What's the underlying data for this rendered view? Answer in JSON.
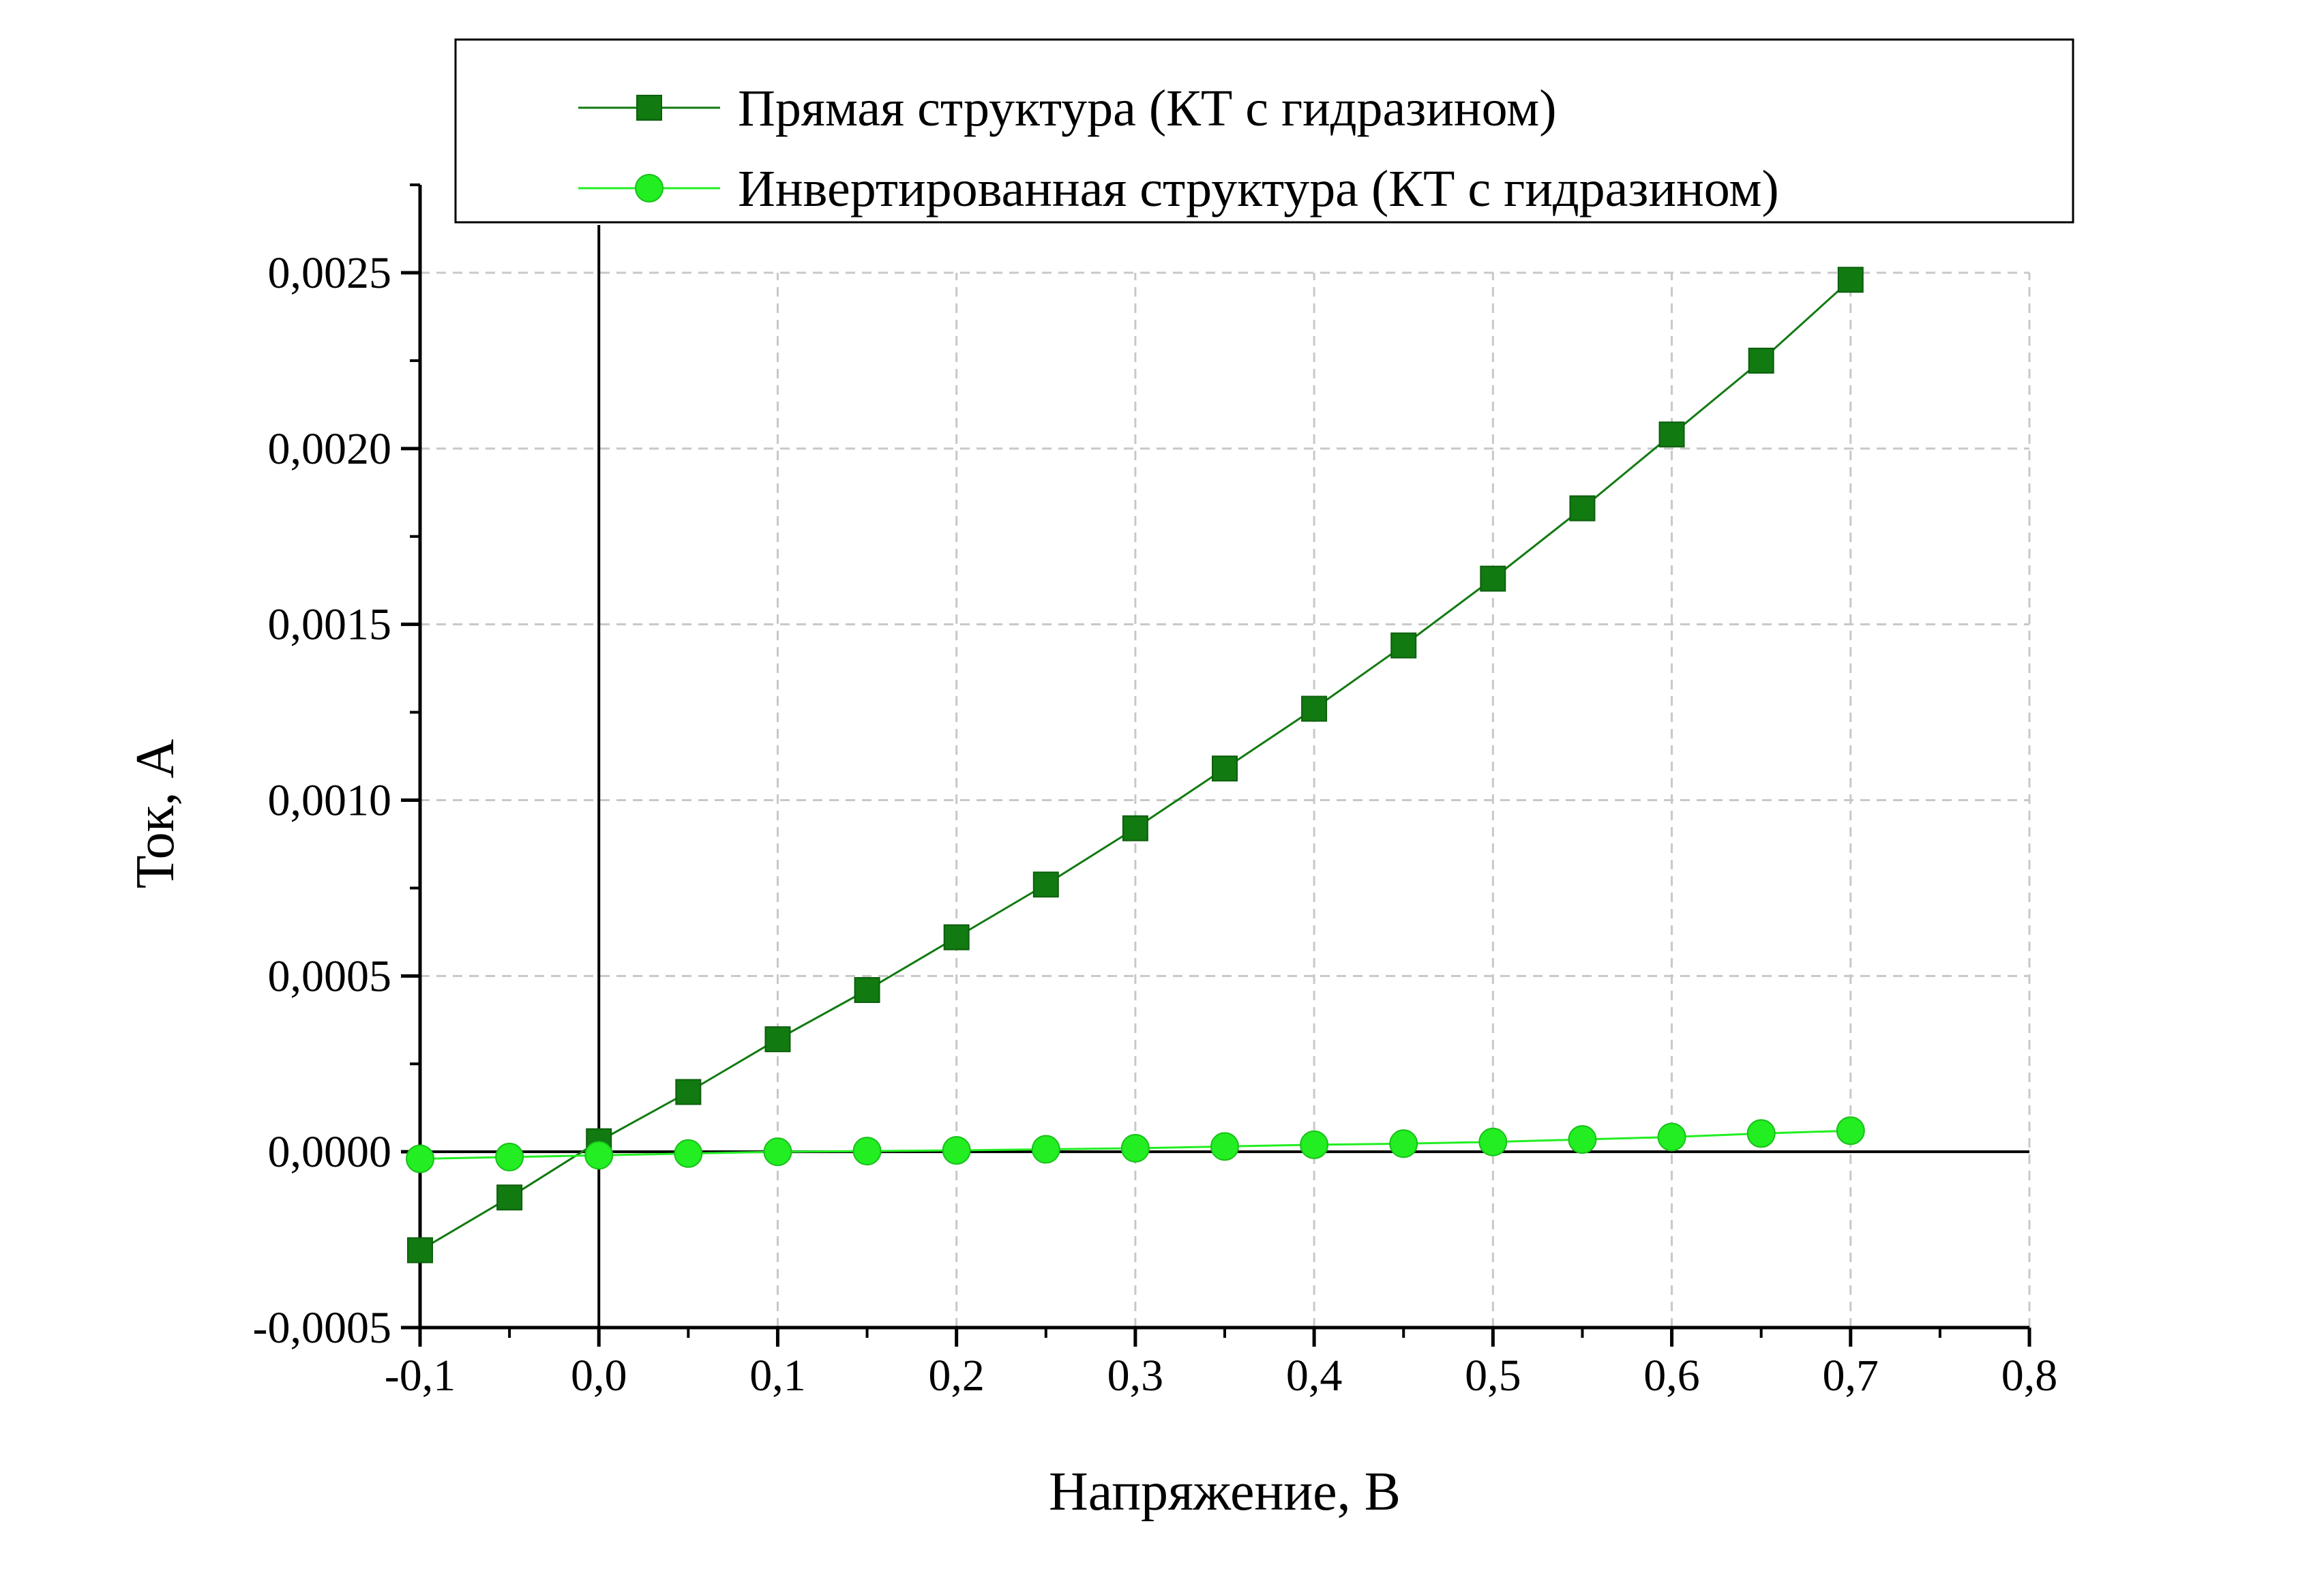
{
  "chart_data": {
    "type": "line",
    "title": "",
    "xlabel": "Напряжение, В",
    "ylabel": "Ток, А",
    "xlim": [
      -0.1,
      0.8
    ],
    "ylim": [
      -0.0005,
      0.00275
    ],
    "x_major_step": 0.1,
    "y_major_step": 0.0005,
    "x_ticks": [
      -0.1,
      0.0,
      0.1,
      0.2,
      0.3,
      0.4,
      0.5,
      0.6,
      0.7,
      0.8
    ],
    "x_tick_labels": [
      "-0,1",
      "0,0",
      "0,1",
      "0,2",
      "0,3",
      "0,4",
      "0,5",
      "0,6",
      "0,7",
      "0,8"
    ],
    "y_ticks": [
      -0.0005,
      0.0,
      0.0005,
      0.001,
      0.0015,
      0.002,
      0.0025
    ],
    "y_tick_labels": [
      "-0,0005",
      "0,0000",
      "0,0005",
      "0,0010",
      "0,0015",
      "0,0020",
      "0,0025"
    ],
    "grid": true,
    "legend_position": "top",
    "series": [
      {
        "name": "Прямая структура (КТ с гидразином)",
        "marker": "square",
        "color": "#117a11",
        "x": [
          -0.1,
          -0.05,
          0.0,
          0.05,
          0.1,
          0.15,
          0.2,
          0.25,
          0.3,
          0.35,
          0.4,
          0.45,
          0.5,
          0.55,
          0.6,
          0.65,
          0.7
        ],
        "y": [
          -0.00028,
          -0.00013,
          3e-05,
          0.00017,
          0.00032,
          0.00046,
          0.00061,
          0.00076,
          0.00092,
          0.00109,
          0.00126,
          0.00144,
          0.00163,
          0.00183,
          0.00204,
          0.00225,
          0.00248
        ]
      },
      {
        "name": "Инвертированная структура (КТ с гидразином)",
        "marker": "circle",
        "color": "#22ee22",
        "x": [
          -0.1,
          -0.05,
          0.0,
          0.05,
          0.1,
          0.15,
          0.2,
          0.25,
          0.3,
          0.35,
          0.4,
          0.45,
          0.5,
          0.55,
          0.6,
          0.65,
          0.7
        ],
        "y": [
          -2e-05,
          -1.5e-05,
          -1e-05,
          -5e-06,
          0.0,
          2e-06,
          4e-06,
          7e-06,
          1e-05,
          1.5e-05,
          2e-05,
          2.3e-05,
          2.8e-05,
          3.5e-05,
          4.2e-05,
          5.2e-05,
          6e-05
        ]
      }
    ]
  }
}
